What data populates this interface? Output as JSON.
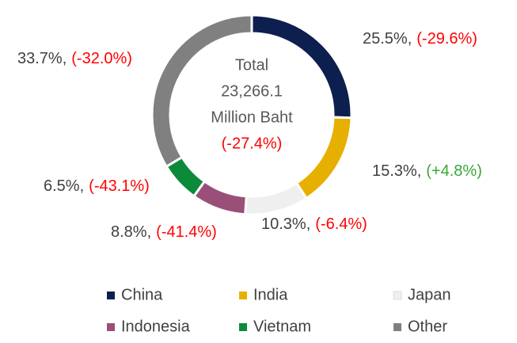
{
  "chart_data": {
    "type": "donut",
    "categories": [
      "China",
      "India",
      "Japan",
      "Indonesia",
      "Vietnam",
      "Other"
    ],
    "values": [
      25.5,
      15.3,
      10.3,
      8.8,
      6.5,
      33.7
    ],
    "value_labels": [
      "25.5%,",
      "15.3%,",
      "10.3%,",
      "8.8%,",
      "6.5%,",
      "33.7%,"
    ],
    "changes": [
      "(-29.6%)",
      "(+4.8%)",
      "(-6.4%)",
      "(-41.4%)",
      "(-43.1%)",
      "(-32.0%)"
    ],
    "change_colors": [
      "#ff0000",
      "#3aa636",
      "#ff0000",
      "#ff0000",
      "#ff0000",
      "#ff0000"
    ],
    "colors": [
      "#0c1f4e",
      "#e6b000",
      "#efefef",
      "#9a4f78",
      "#0b8a3a",
      "#808080"
    ],
    "center_label": [
      "Total",
      "23,266.1",
      "Million Baht",
      "(-27.4%)"
    ],
    "center_label_colors": [
      "#595959",
      "#595959",
      "#595959",
      "#ff0000"
    ],
    "legend": "bottom"
  }
}
